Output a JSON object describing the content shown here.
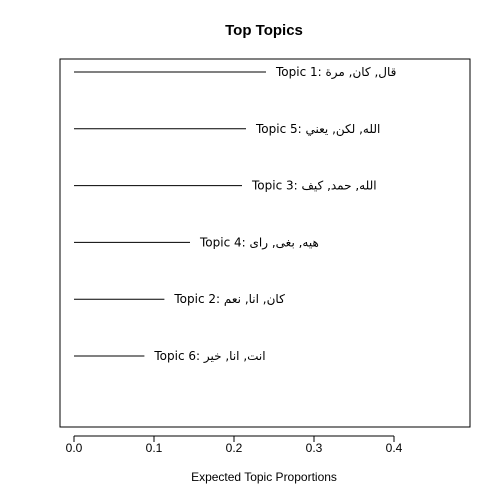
{
  "chart_data": {
    "type": "bar",
    "orientation": "horizontal",
    "title": "Top Topics",
    "xlabel": "Expected Topic Proportions",
    "ylabel": "",
    "xlim": [
      0,
      0.49
    ],
    "xticks": [
      0.0,
      0.1,
      0.2,
      0.3,
      0.4
    ],
    "xtick_labels": [
      "0.0",
      "0.1",
      "0.2",
      "0.3",
      "0.4"
    ],
    "grid": false,
    "style": "segment",
    "categories": [
      "Topic 1: قال, كان, مرة",
      "Topic 5: الله, لكن, يعني",
      "Topic 3: الله, حمد, كيف",
      "Topic 4: هيه, بغى, راى",
      "Topic 2: كان, انا, نعم",
      "Topic 6: انت, انا, خير"
    ],
    "values": [
      0.24,
      0.215,
      0.21,
      0.145,
      0.113,
      0.088
    ]
  }
}
